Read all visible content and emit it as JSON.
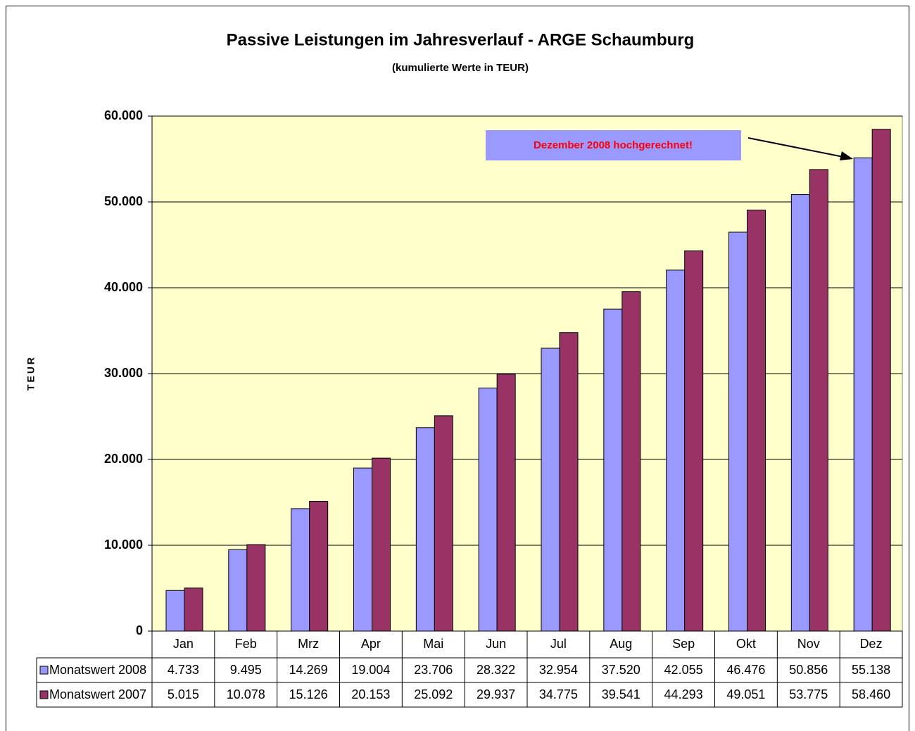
{
  "chart_data": {
    "type": "bar",
    "title": "Passive Leistungen im Jahresverlauf - ARGE Schaumburg",
    "subtitle": "(kumulierte Werte in TEUR)",
    "y_label": "TEUR",
    "annotation": "Dezember 2008 hochgerechnet!",
    "categories": [
      "Jan",
      "Feb",
      "Mrz",
      "Apr",
      "Mai",
      "Jun",
      "Jul",
      "Aug",
      "Sep",
      "Okt",
      "Nov",
      "Dez"
    ],
    "series": [
      {
        "name": "Monatswert 2008",
        "color": "#9999ff",
        "values": [
          4733,
          9495,
          14269,
          19004,
          23706,
          28322,
          32954,
          37520,
          42055,
          46476,
          50856,
          55138
        ],
        "value_labels": [
          "4.733",
          "9.495",
          "14.269",
          "19.004",
          "23.706",
          "28.322",
          "32.954",
          "37.520",
          "42.055",
          "46.476",
          "50.856",
          "55.138"
        ]
      },
      {
        "name": "Monatswert 2007",
        "color": "#993366",
        "values": [
          5015,
          10078,
          15126,
          20153,
          25092,
          29937,
          34775,
          39541,
          44293,
          49051,
          53775,
          58460
        ],
        "value_labels": [
          "5.015",
          "10.078",
          "15.126",
          "20.153",
          "25.092",
          "29.937",
          "34.775",
          "39.541",
          "44.293",
          "49.051",
          "53.775",
          "58.460"
        ]
      }
    ],
    "ylim": [
      0,
      60000
    ],
    "yticks": [
      0,
      {
        "value": 10000,
        "label": "10.000"
      },
      {
        "value": 20000,
        "label": "20.000"
      },
      {
        "value": 30000,
        "label": "30.000"
      },
      {
        "value": 40000,
        "label": "40.000"
      },
      {
        "value": 50000,
        "label": "50.000"
      },
      {
        "value": 60000,
        "label": "60.000"
      }
    ],
    "grid": true,
    "plot_background": "#ffffcc",
    "annotation_color": "#9999ff"
  }
}
